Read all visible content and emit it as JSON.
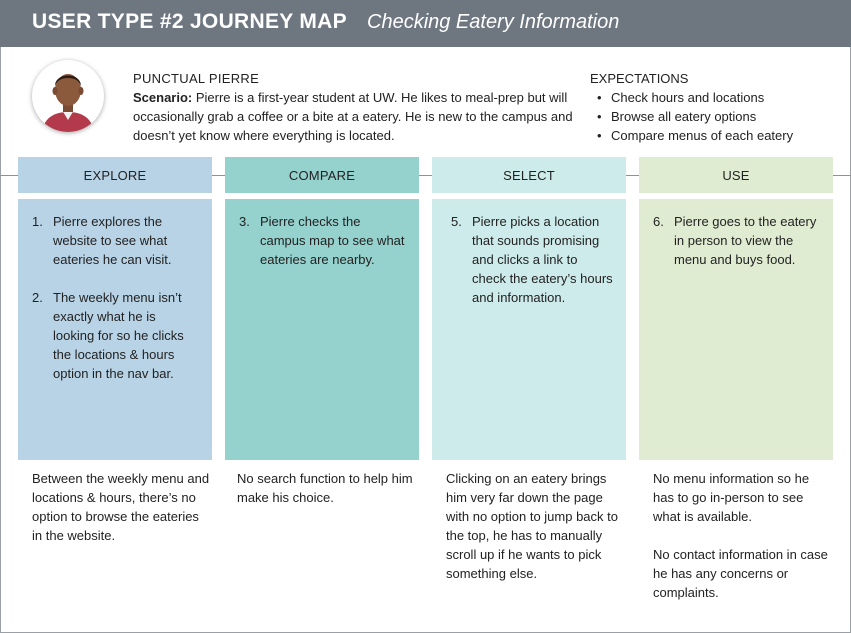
{
  "header": {
    "title": "USER TYPE #2 JOURNEY MAP",
    "subtitle": "Checking Eatery Information"
  },
  "persona": {
    "name": "PUNCTUAL PIERRE",
    "scenario_label": "Scenario:",
    "scenario_text": " Pierre is a first-year student at UW. He likes to meal-prep but will occasionally grab a coffee or a bite at a eatery. He is new to the campus and doesn’t yet know where everything is located."
  },
  "expectations": {
    "title": "EXPECTATIONS",
    "items": [
      "Check hours and locations",
      "Browse all eatery options",
      "Compare menus of each eatery"
    ]
  },
  "colors": {
    "header_bg": "#6e7780",
    "explore": "#b8d3e6",
    "compare": "#95d1cd",
    "select": "#cdebea",
    "use": "#e0ecd2"
  },
  "stages": [
    {
      "label": "EXPLORE",
      "steps": [
        {
          "num": "1.",
          "text": "Pierre explores the website to see what eateries he can visit."
        },
        {
          "num": "2.",
          "text": "The weekly menu isn’t exactly what he is looking for so he clicks the locations & hours option in the nav bar."
        }
      ],
      "pain_points": [
        "Between the weekly menu and locations & hours, there’s no option to browse the eateries in the website."
      ]
    },
    {
      "label": "COMPARE",
      "steps": [
        {
          "num": "3.",
          "text": "Pierre checks the campus map to see what eateries are nearby."
        }
      ],
      "pain_points": [
        "No search function to help him make his choice."
      ]
    },
    {
      "label": "SELECT",
      "steps": [
        {
          "num": "5.",
          "text": "Pierre picks a location that sounds promising and clicks a link to check the eatery’s hours and information."
        }
      ],
      "pain_points": [
        "Clicking on an eatery brings him very far down the page with no option to jump back to the top, he has to manually scroll up if he wants to pick something else."
      ]
    },
    {
      "label": "USE",
      "steps": [
        {
          "num": "6.",
          "text": "Pierre goes to the eatery in person to view the menu and buys food."
        }
      ],
      "pain_points": [
        "No menu information so he has to go in-person to see what is available.",
        "No contact information in case he has any concerns or complaints."
      ]
    }
  ]
}
